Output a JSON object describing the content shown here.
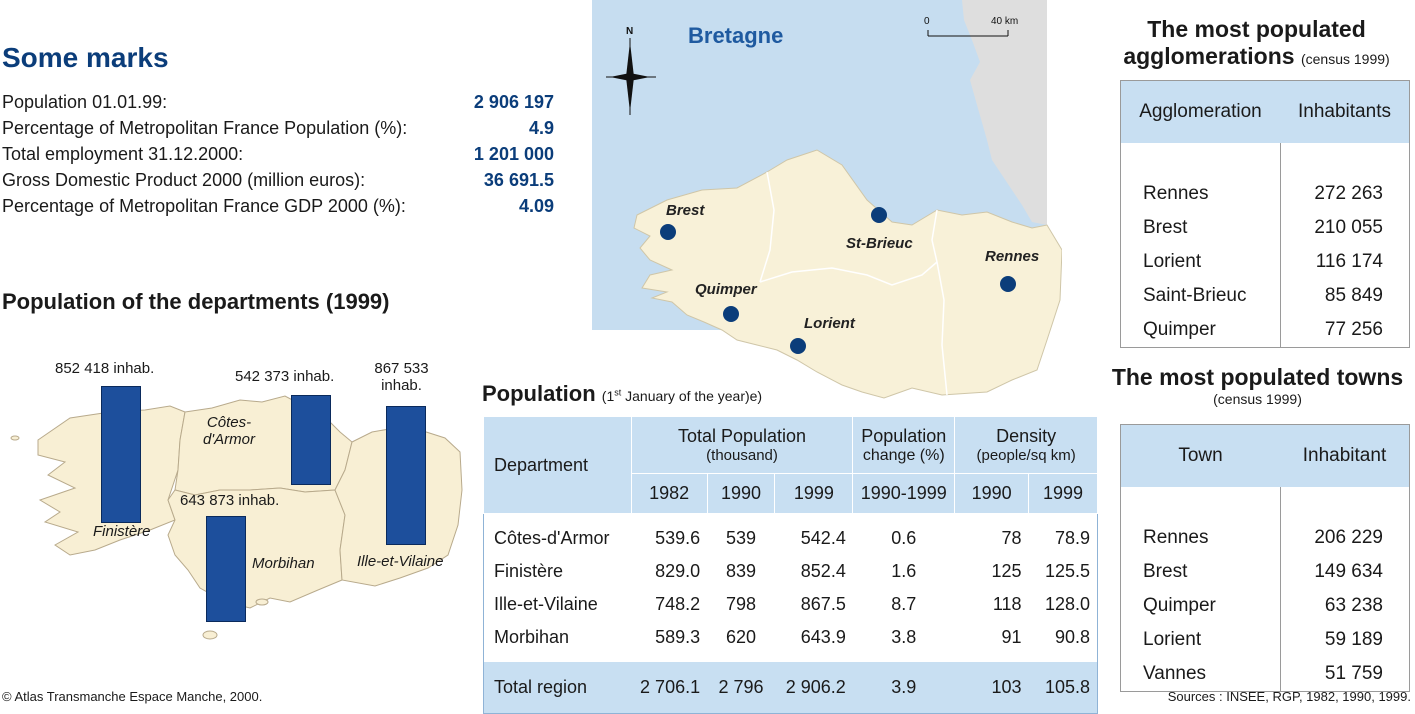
{
  "marks": {
    "title": "Some marks",
    "rows": [
      {
        "label": "Population 01.01.99:",
        "value": "2 906 197"
      },
      {
        "label": "Percentage of Metropolitan France Population (%):",
        "value": "4.9"
      },
      {
        "label": "Total employment 31.12.2000:",
        "value": "1 201 000"
      },
      {
        "label": "Gross Domestic Product 2000 (million euros):",
        "value": "36 691.5"
      },
      {
        "label": "Percentage of Metropolitan France GDP 2000 (%):",
        "value": "4.09"
      }
    ]
  },
  "departments_map": {
    "title": "Population of the departments (1999)",
    "bars": [
      {
        "label": "852 418 inhab.",
        "value": 852418
      },
      {
        "label": "542 373 inhab.",
        "value": 542373
      },
      {
        "label": "867 533 inhab.",
        "value": 867533
      },
      {
        "label": "643 873 inhab.",
        "value": 643873
      }
    ],
    "dept_names": [
      "Finistère",
      "Côtes-d'Armor",
      "Morbihan",
      "Ille-et-Vilaine"
    ]
  },
  "main_map": {
    "region": "Bretagne",
    "north": "N",
    "scale_start": "0",
    "scale_end": "40 km",
    "cities": [
      "Brest",
      "St-Brieuc",
      "Quimper",
      "Lorient",
      "Rennes"
    ]
  },
  "population_table": {
    "title": "Population",
    "subtitle": "(1st January of the year)e)",
    "subtitle_sup": "st",
    "subtitle_a": "(1",
    "subtitle_b": " January of the year)e)",
    "headers": {
      "department": "Department",
      "total_pop": "Total Population",
      "total_pop_unit": "(thousand)",
      "pop_change": "Population",
      "pop_change_unit": "change (%)",
      "density": "Density",
      "density_unit": "(people/sq km)",
      "years": [
        "1982",
        "1990",
        "1999",
        "1990-1999",
        "1990",
        "1999"
      ]
    },
    "rows": [
      {
        "dept": "Côtes-d'Armor",
        "cells": [
          "539.6",
          "539",
          "542.4",
          "0.6",
          "78",
          "78.9"
        ]
      },
      {
        "dept": "Finistère",
        "cells": [
          "829.0",
          "839",
          "852.4",
          "1.6",
          "125",
          "125.5"
        ]
      },
      {
        "dept": "Ille-et-Vilaine",
        "cells": [
          "748.2",
          "798",
          "867.5",
          "8.7",
          "118",
          "128.0"
        ]
      },
      {
        "dept": "Morbihan",
        "cells": [
          "589.3",
          "620",
          "643.9",
          "3.8",
          "91",
          "90.8"
        ]
      }
    ],
    "total": {
      "dept": "Total region",
      "cells": [
        "2 706.1",
        "2 796",
        "2 906.2",
        "3.9",
        "103",
        "105.8"
      ]
    }
  },
  "agglomerations": {
    "title_line1": "The most populated",
    "title_line2": "agglomerations",
    "census": "(census 1999)",
    "col1": "Agglomeration",
    "col2": "Inhabitants",
    "rows": [
      {
        "name": "Rennes",
        "value": "272 263"
      },
      {
        "name": "Brest",
        "value": "210 055"
      },
      {
        "name": "Lorient",
        "value": "116 174"
      },
      {
        "name": "Saint-Brieuc",
        "value": "85 849"
      },
      {
        "name": "Quimper",
        "value": "77 256"
      }
    ]
  },
  "towns": {
    "title": "The most populated towns",
    "census": "(census 1999)",
    "col1": "Town",
    "col2": "Inhabitant",
    "rows": [
      {
        "name": "Rennes",
        "value": "206 229"
      },
      {
        "name": "Brest",
        "value": "149 634"
      },
      {
        "name": "Quimper",
        "value": "63 238"
      },
      {
        "name": "Lorient",
        "value": "59 189"
      },
      {
        "name": "Vannes",
        "value": "51 759"
      }
    ]
  },
  "footer": {
    "copyright": "© Atlas Transmanche Espace Manche, 2000.",
    "sources": "Sources : INSEE, RGP, 1982, 1990, 1999."
  }
}
